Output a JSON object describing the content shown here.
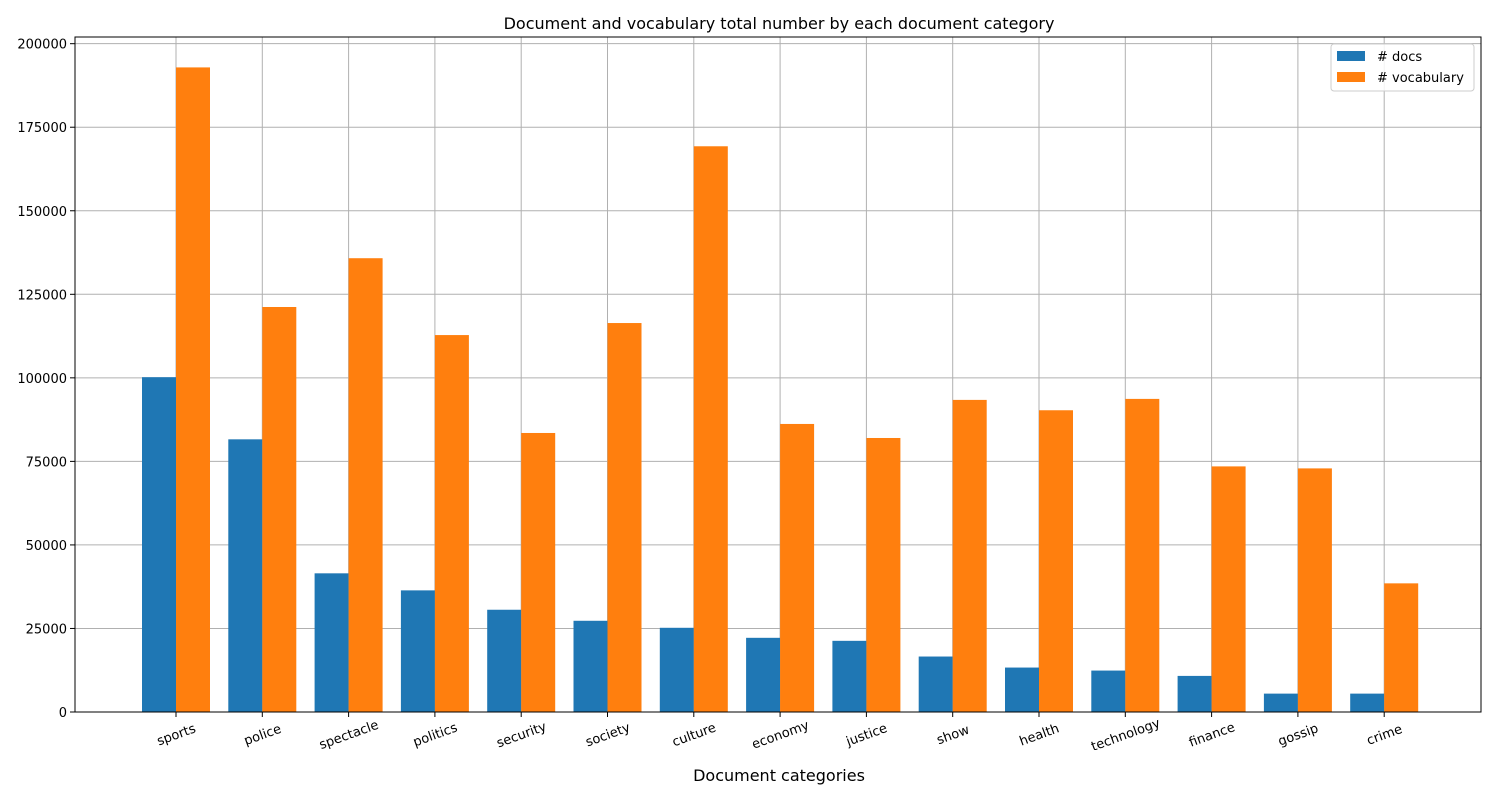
{
  "chart_data": {
    "type": "bar",
    "title": "Document and vocabulary total number by each document category",
    "xlabel": "Document categories",
    "ylabel": "",
    "categories": [
      "sports",
      "police",
      "spectacle",
      "politics",
      "security",
      "society",
      "culture",
      "economy",
      "justice",
      "show",
      "health",
      "technology",
      "finance",
      "gossip",
      "crime"
    ],
    "series": [
      {
        "name": "# docs",
        "color": "#1f77b4",
        "values": [
          100200,
          81600,
          41500,
          36400,
          30600,
          27300,
          25200,
          22200,
          21300,
          16600,
          13300,
          12400,
          10800,
          5500,
          5500
        ]
      },
      {
        "name": "# vocabulary",
        "color": "#ff7f0e",
        "values": [
          192900,
          121200,
          135800,
          112800,
          83500,
          116400,
          169300,
          86200,
          82000,
          93400,
          90300,
          93700,
          73500,
          72900,
          38500
        ]
      }
    ],
    "ylim": [
      0,
      202000
    ],
    "yticks": [
      0,
      25000,
      50000,
      75000,
      100000,
      125000,
      150000,
      175000,
      200000
    ],
    "grid": true,
    "legend_position": "top-right"
  }
}
